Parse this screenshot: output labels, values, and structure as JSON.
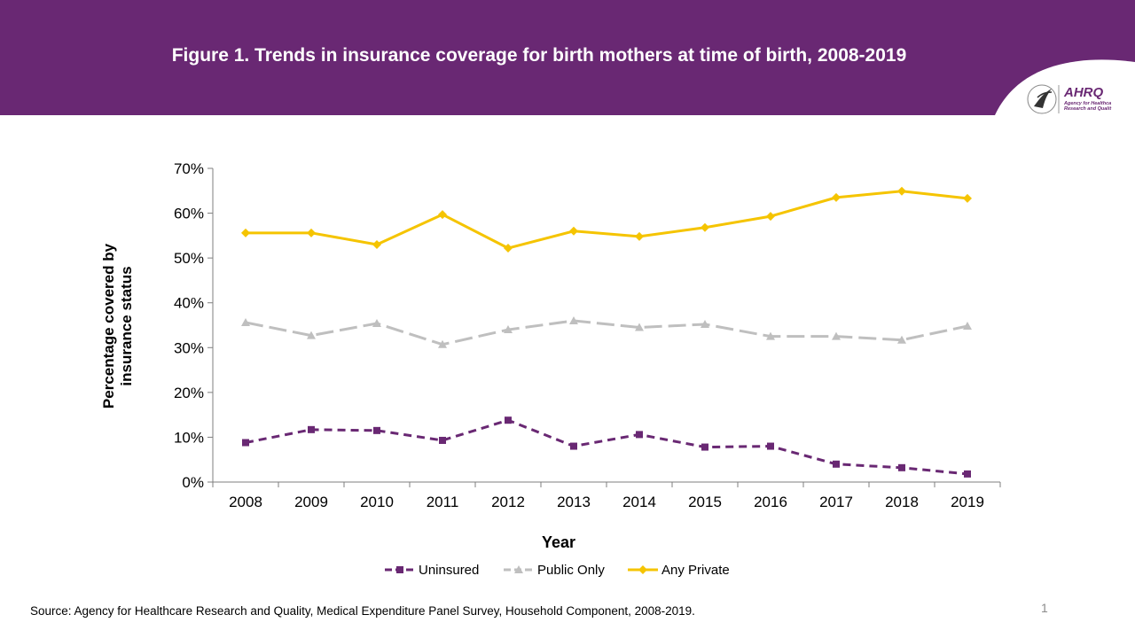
{
  "slide": {
    "title": "Figure 1. Trends in insurance coverage for birth mothers at time of birth, 2008-2019",
    "source": "Source: Agency for Healthcare Research and Quality, Medical Expenditure Panel Survey, Household Component, 2008-2019.",
    "page_number": "1",
    "banner_color": "#692873",
    "logo": {
      "hhs_icon": "hhs-eagle-icon",
      "brand": "AHRQ",
      "tagline_line1": "Agency for Healthca",
      "tagline_line2": "Research and Qualit"
    }
  },
  "chart_data": {
    "type": "line",
    "xlabel": "Year",
    "ylabel_lines": [
      "Percentage covered by",
      "insurance status"
    ],
    "categories": [
      "2008",
      "2009",
      "2010",
      "2011",
      "2012",
      "2013",
      "2014",
      "2015",
      "2016",
      "2017",
      "2018",
      "2019"
    ],
    "ylim": [
      0,
      70
    ],
    "yticks": [
      0,
      10,
      20,
      30,
      40,
      50,
      60,
      70
    ],
    "ytick_labels": [
      "0%",
      "10%",
      "20%",
      "30%",
      "40%",
      "50%",
      "60%",
      "70%"
    ],
    "grid": false,
    "legend_position": "bottom",
    "series": [
      {
        "name": "Uninsured",
        "color": "#692873",
        "line_style": "dashed",
        "marker": "square",
        "values": [
          8.8,
          11.7,
          11.5,
          9.3,
          13.8,
          8.0,
          10.6,
          7.8,
          8.0,
          4.0,
          3.2,
          1.8
        ]
      },
      {
        "name": "Public Only",
        "color": "#bfbfbf",
        "line_style": "long-dashed",
        "marker": "triangle",
        "values": [
          35.6,
          32.7,
          35.4,
          30.7,
          34.0,
          36.0,
          34.5,
          35.2,
          32.5,
          32.5,
          31.7,
          34.8
        ]
      },
      {
        "name": "Any Private",
        "color": "#f5c400",
        "line_style": "solid",
        "marker": "diamond",
        "values": [
          55.6,
          55.6,
          53.0,
          59.7,
          52.2,
          56.0,
          54.8,
          56.8,
          59.3,
          63.5,
          64.9,
          63.3
        ]
      }
    ]
  }
}
